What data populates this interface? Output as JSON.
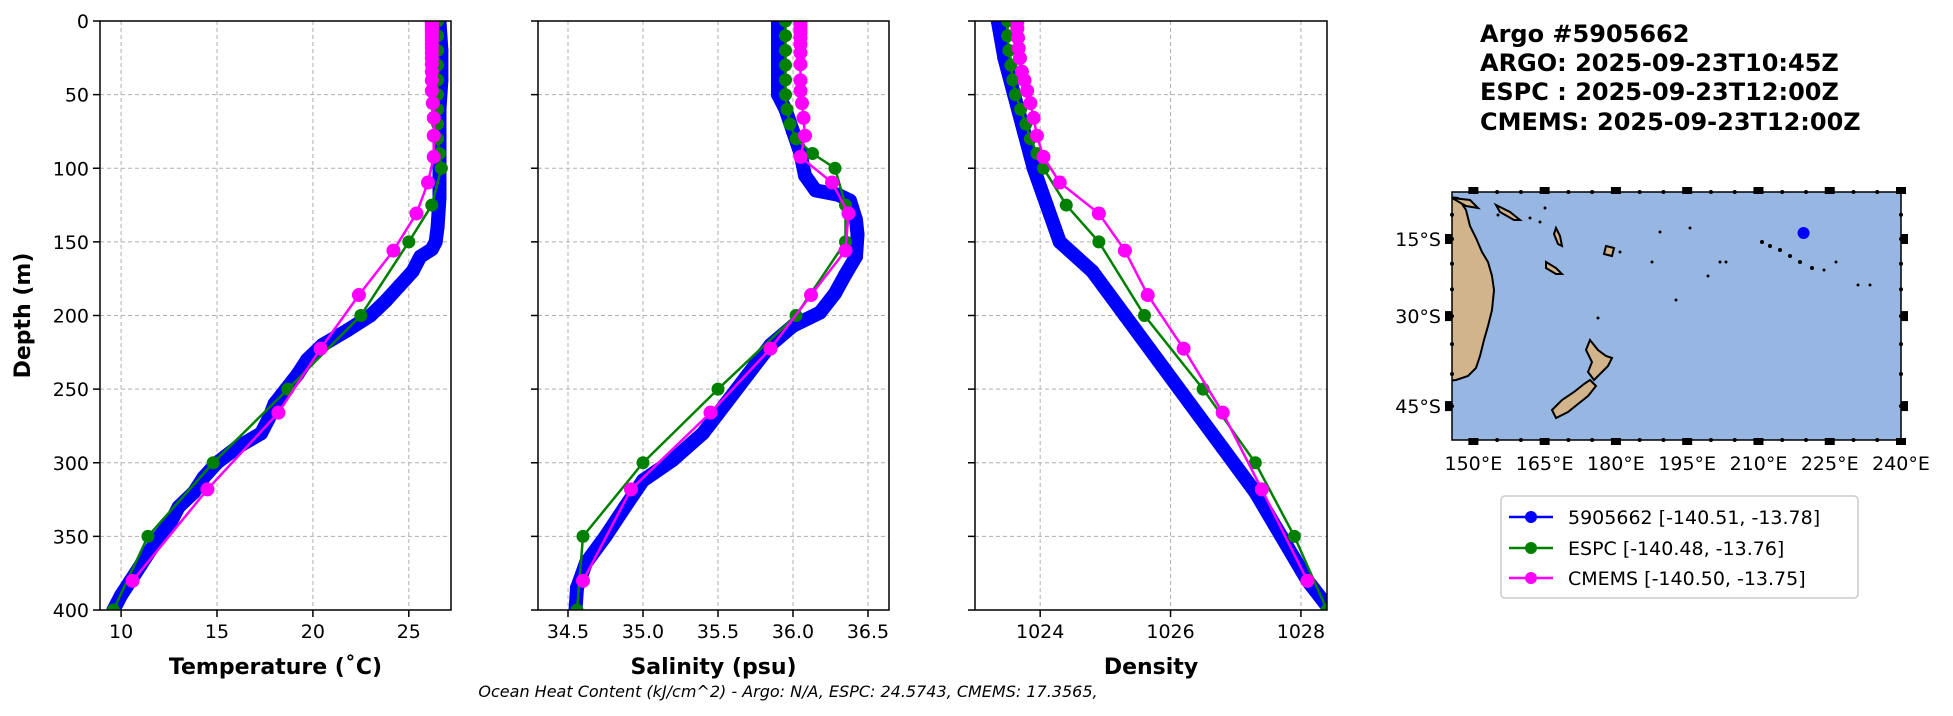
{
  "header": {
    "lines": [
      "Argo #5905662",
      "ARGO: 2025-09-23T10:45Z",
      "ESPC : 2025-09-23T12:00Z",
      "CMEMS: 2025-09-23T12:00Z"
    ]
  },
  "footer": "Ocean Heat Content (kJ/cm^2) - Argo: N/A,  ESPC: 24.5743,  CMEMS: 17.3565,",
  "legend": [
    {
      "label": "5905662 [-140.51, -13.78]",
      "color": "#0000ff"
    },
    {
      "label": "ESPC [-140.48, -13.76]",
      "color": "#008000"
    },
    {
      "label": "CMEMS [-140.50, -13.75]",
      "color": "#ff00ff"
    }
  ],
  "chart_data": [
    {
      "type": "line",
      "xlabel": "Temperature (˚C)",
      "ylabel": "Depth (m)",
      "xlim": [
        8.9,
        27.2
      ],
      "ylim": [
        400,
        0
      ],
      "xticks": [
        10,
        15,
        20,
        25
      ],
      "xticklabels": [
        "10",
        "15",
        "20",
        "25"
      ],
      "yticks": [
        0,
        50,
        100,
        150,
        200,
        250,
        300,
        350,
        400
      ],
      "yticklabels": [
        "0",
        "50",
        "100",
        "150",
        "200",
        "250",
        "300",
        "350",
        "400"
      ],
      "grid": true,
      "series": [
        {
          "name": "5905662",
          "color": "#0000ff",
          "points": [
            [
              26.6,
              0
            ],
            [
              26.7,
              20
            ],
            [
              26.7,
              40
            ],
            [
              26.6,
              60
            ],
            [
              26.6,
              80
            ],
            [
              26.6,
              100
            ],
            [
              26.6,
              120
            ],
            [
              26.5,
              140
            ],
            [
              26.4,
              150
            ],
            [
              26.2,
              155
            ],
            [
              25.6,
              160
            ],
            [
              25.2,
              170
            ],
            [
              24.5,
              180
            ],
            [
              23.8,
              190
            ],
            [
              23.0,
              200
            ],
            [
              21.8,
              210
            ],
            [
              20.5,
              220
            ],
            [
              19.7,
              230
            ],
            [
              19.2,
              240
            ],
            [
              18.6,
              250
            ],
            [
              18.0,
              260
            ],
            [
              17.7,
              270
            ],
            [
              17.3,
              280
            ],
            [
              16.0,
              290
            ],
            [
              15.0,
              300
            ],
            [
              14.3,
              310
            ],
            [
              13.8,
              320
            ],
            [
              13.0,
              330
            ],
            [
              12.6,
              340
            ],
            [
              12.0,
              350
            ],
            [
              11.5,
              360
            ],
            [
              11.0,
              370
            ],
            [
              10.5,
              380
            ],
            [
              10.0,
              390
            ],
            [
              9.6,
              400
            ]
          ]
        },
        {
          "name": "ESPC",
          "color": "#008000",
          "points": [
            [
              26.5,
              0
            ],
            [
              26.5,
              10
            ],
            [
              26.5,
              20
            ],
            [
              26.5,
              30
            ],
            [
              26.5,
              40
            ],
            [
              26.5,
              50
            ],
            [
              26.5,
              60
            ],
            [
              26.5,
              70
            ],
            [
              26.5,
              80
            ],
            [
              26.6,
              90
            ],
            [
              26.7,
              100
            ],
            [
              26.2,
              125
            ],
            [
              25.0,
              150
            ],
            [
              22.5,
              200
            ],
            [
              18.7,
              250
            ],
            [
              14.8,
              300
            ],
            [
              11.4,
              350
            ],
            [
              9.6,
              400
            ]
          ]
        },
        {
          "name": "CMEMS",
          "color": "#ff00ff",
          "points": [
            [
              26.2,
              0.5
            ],
            [
              26.2,
              1.5
            ],
            [
              26.2,
              2.6
            ],
            [
              26.2,
              3.8
            ],
            [
              26.2,
              5.1
            ],
            [
              26.2,
              6.4
            ],
            [
              26.2,
              7.9
            ],
            [
              26.2,
              9.6
            ],
            [
              26.2,
              11.4
            ],
            [
              26.2,
              13.5
            ],
            [
              26.2,
              15.8
            ],
            [
              26.2,
              18.5
            ],
            [
              26.2,
              21.6
            ],
            [
              26.2,
              25.2
            ],
            [
              26.2,
              29.4
            ],
            [
              26.2,
              34.4
            ],
            [
              26.2,
              40.3
            ],
            [
              26.2,
              47.4
            ],
            [
              26.25,
              55.8
            ],
            [
              26.3,
              65.8
            ],
            [
              26.3,
              77.9
            ],
            [
              26.3,
              92.3
            ],
            [
              26.0,
              109.7
            ],
            [
              25.4,
              130.7
            ],
            [
              24.2,
              155.9
            ],
            [
              22.4,
              186.1
            ],
            [
              20.4,
              222.5
            ],
            [
              18.2,
              266.0
            ],
            [
              14.5,
              318.1
            ],
            [
              10.6,
              380.2
            ]
          ]
        }
      ]
    },
    {
      "type": "line",
      "xlabel": "Salinity (psu)",
      "ylabel": "",
      "xlim": [
        34.3,
        36.64
      ],
      "ylim": [
        400,
        0
      ],
      "xticks": [
        34.5,
        35.0,
        35.5,
        36.0,
        36.5
      ],
      "xticklabels": [
        "34.5",
        "35.0",
        "35.5",
        "36.0",
        "36.5"
      ],
      "yticks": [
        0,
        50,
        100,
        150,
        200,
        250,
        300,
        350,
        400
      ],
      "grid": true,
      "series": [
        {
          "name": "5905662",
          "color": "#0000ff",
          "points": [
            [
              35.9,
              0
            ],
            [
              35.9,
              20
            ],
            [
              35.9,
              40
            ],
            [
              35.9,
              50
            ],
            [
              35.95,
              60
            ],
            [
              36.0,
              75
            ],
            [
              36.05,
              90
            ],
            [
              36.08,
              105
            ],
            [
              36.15,
              115
            ],
            [
              36.3,
              118
            ],
            [
              36.38,
              122
            ],
            [
              36.42,
              135
            ],
            [
              36.43,
              145
            ],
            [
              36.42,
              160
            ],
            [
              36.35,
              172
            ],
            [
              36.28,
              185
            ],
            [
              36.18,
              198
            ],
            [
              36.0,
              207
            ],
            [
              35.85,
              220
            ],
            [
              35.7,
              240
            ],
            [
              35.55,
              260
            ],
            [
              35.4,
              280
            ],
            [
              35.2,
              298
            ],
            [
              35.0,
              312
            ],
            [
              34.88,
              330
            ],
            [
              34.75,
              350
            ],
            [
              34.62,
              368
            ],
            [
              34.56,
              385
            ],
            [
              34.55,
              400
            ]
          ]
        },
        {
          "name": "ESPC",
          "color": "#008000",
          "points": [
            [
              35.95,
              0
            ],
            [
              35.95,
              10
            ],
            [
              35.95,
              20
            ],
            [
              35.95,
              30
            ],
            [
              35.95,
              40
            ],
            [
              35.95,
              50
            ],
            [
              35.96,
              60
            ],
            [
              35.98,
              70
            ],
            [
              36.02,
              80
            ],
            [
              36.13,
              90
            ],
            [
              36.28,
              100
            ],
            [
              36.35,
              125
            ],
            [
              36.35,
              150
            ],
            [
              36.02,
              200
            ],
            [
              35.5,
              250
            ],
            [
              35.0,
              300
            ],
            [
              34.6,
              350
            ],
            [
              34.56,
              400
            ]
          ]
        },
        {
          "name": "CMEMS",
          "color": "#ff00ff",
          "points": [
            [
              36.05,
              0.5
            ],
            [
              36.05,
              2.6
            ],
            [
              36.05,
              5.1
            ],
            [
              36.05,
              7.9
            ],
            [
              36.05,
              11.4
            ],
            [
              36.05,
              15.8
            ],
            [
              36.05,
              21.6
            ],
            [
              36.05,
              29.4
            ],
            [
              36.05,
              40.3
            ],
            [
              36.05,
              47.4
            ],
            [
              36.06,
              55.8
            ],
            [
              36.07,
              65.8
            ],
            [
              36.08,
              77.9
            ],
            [
              36.05,
              92.3
            ],
            [
              36.26,
              109.7
            ],
            [
              36.37,
              130.7
            ],
            [
              36.35,
              155.9
            ],
            [
              36.12,
              186.1
            ],
            [
              35.85,
              222.5
            ],
            [
              35.45,
              266.0
            ],
            [
              34.92,
              318.1
            ],
            [
              34.6,
              380.2
            ]
          ]
        }
      ]
    },
    {
      "type": "line",
      "xlabel": "Density",
      "ylabel": "",
      "xlim": [
        1023.0,
        1028.4
      ],
      "ylim": [
        400,
        0
      ],
      "xticks": [
        1024,
        1026,
        1028
      ],
      "xticklabels": [
        "1024",
        "1026",
        "1028"
      ],
      "yticks": [
        0,
        50,
        100,
        150,
        200,
        250,
        300,
        350,
        400
      ],
      "grid": true,
      "series": [
        {
          "name": "5905662",
          "color": "#0000ff",
          "points": [
            [
              1023.35,
              0
            ],
            [
              1023.45,
              25
            ],
            [
              1023.6,
              50
            ],
            [
              1023.75,
              75
            ],
            [
              1023.9,
              100
            ],
            [
              1024.1,
              125
            ],
            [
              1024.3,
              150
            ],
            [
              1024.8,
              170
            ],
            [
              1025.3,
              200
            ],
            [
              1025.8,
              230
            ],
            [
              1026.3,
              260
            ],
            [
              1026.8,
              290
            ],
            [
              1027.3,
              320
            ],
            [
              1027.7,
              350
            ],
            [
              1028.1,
              380
            ],
            [
              1028.45,
              400
            ]
          ]
        },
        {
          "name": "ESPC",
          "color": "#008000",
          "points": [
            [
              1023.5,
              0
            ],
            [
              1023.5,
              10
            ],
            [
              1023.52,
              20
            ],
            [
              1023.55,
              30
            ],
            [
              1023.58,
              40
            ],
            [
              1023.62,
              50
            ],
            [
              1023.7,
              60
            ],
            [
              1023.78,
              70
            ],
            [
              1023.85,
              80
            ],
            [
              1023.95,
              90
            ],
            [
              1024.05,
              100
            ],
            [
              1024.4,
              125
            ],
            [
              1024.9,
              150
            ],
            [
              1025.6,
              200
            ],
            [
              1026.5,
              250
            ],
            [
              1027.3,
              300
            ],
            [
              1027.9,
              350
            ],
            [
              1028.4,
              400
            ]
          ]
        },
        {
          "name": "CMEMS",
          "color": "#ff00ff",
          "points": [
            [
              1023.65,
              0.5
            ],
            [
              1023.65,
              5.1
            ],
            [
              1023.66,
              11.4
            ],
            [
              1023.67,
              18.5
            ],
            [
              1023.69,
              25.2
            ],
            [
              1023.72,
              34.4
            ],
            [
              1023.76,
              40.3
            ],
            [
              1023.8,
              47.4
            ],
            [
              1023.85,
              55.8
            ],
            [
              1023.9,
              65.8
            ],
            [
              1023.95,
              77.9
            ],
            [
              1024.05,
              92.3
            ],
            [
              1024.3,
              109.7
            ],
            [
              1024.9,
              130.7
            ],
            [
              1025.3,
              155.9
            ],
            [
              1025.65,
              186.1
            ],
            [
              1026.2,
              222.5
            ],
            [
              1026.8,
              266.0
            ],
            [
              1027.4,
              318.1
            ],
            [
              1028.1,
              380.2
            ]
          ]
        }
      ]
    },
    {
      "type": "map",
      "lonlim": [
        145.5,
        240
      ],
      "latlim": [
        -50,
        -9
      ],
      "xticks": [
        150,
        165,
        180,
        195,
        210,
        225,
        240
      ],
      "xticklabels": [
        "150°E",
        "165°E",
        "180°E",
        "195°E",
        "210°E",
        "225°E",
        "240°E"
      ],
      "yticks": [
        -15,
        -30,
        -45
      ],
      "yticklabels": [
        "15°S",
        "30°S",
        "45°S"
      ],
      "marker": {
        "lon": 219.49,
        "lat": -13.78,
        "color": "#0000ff"
      },
      "ocean_color": "#97b6e1",
      "land_color": "#d2b48c"
    }
  ]
}
